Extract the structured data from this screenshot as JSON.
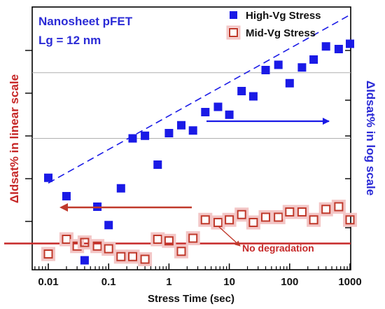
{
  "chart_data": {
    "type": "scatter",
    "title": "Nanosheet pFET",
    "subtitle": "Lg = 12 nm",
    "xlabel": "Stress Time (sec)",
    "ylabel_left": "ΔIdsat% in linear scale",
    "ylabel_right": "ΔIdsat% in log scale",
    "x_scale": "log",
    "xlim": [
      0.005,
      1000
    ],
    "x_ticks": [
      0.01,
      0.1,
      1,
      10,
      100,
      1000
    ],
    "x_tick_labels": [
      "0.01",
      "0.1",
      "1",
      "10",
      "100",
      "1000"
    ],
    "series": [
      {
        "name": "High-Vg Stress",
        "axis": "right",
        "color": "#1a1ae6",
        "marker": "filled-square",
        "x": [
          0.01,
          0.02,
          0.04,
          0.065,
          0.1,
          0.16,
          0.25,
          0.4,
          0.65,
          1.0,
          1.6,
          2.5,
          4,
          6.5,
          10,
          16,
          25,
          40,
          65,
          100,
          160,
          250,
          400,
          650,
          1000
        ],
        "y": [
          27.5,
          24.0,
          11.8,
          22.0,
          18.5,
          25.5,
          35.0,
          35.5,
          30.0,
          36.0,
          37.5,
          36.5,
          40.0,
          41.0,
          39.5,
          44.0,
          43.0,
          48.0,
          49.0,
          45.5,
          48.5,
          50.0,
          52.5,
          52.0,
          53.0
        ]
      },
      {
        "name": "Mid-Vg Stress",
        "axis": "left",
        "color": "#c0392b",
        "marker": "open-square",
        "x": [
          0.01,
          0.02,
          0.03,
          0.04,
          0.065,
          0.1,
          0.16,
          0.25,
          0.4,
          0.65,
          1.0,
          1.6,
          2.5,
          4,
          6.5,
          10,
          16,
          25,
          40,
          65,
          100,
          160,
          250,
          400,
          650,
          1000
        ],
        "y": [
          13.0,
          15.8,
          14.5,
          15.2,
          14.5,
          14.0,
          12.5,
          12.5,
          12.0,
          15.8,
          15.5,
          13.5,
          16.0,
          19.5,
          19.0,
          19.5,
          20.5,
          19.0,
          20.0,
          20.0,
          21.0,
          21.0,
          19.5,
          21.5,
          22.0,
          19.5
        ]
      }
    ],
    "y_range": [
      10,
      60
    ],
    "trend_line": {
      "x": [
        0.01,
        1000
      ],
      "y": [
        26.5,
        58.5
      ],
      "style": "dashed",
      "color": "#1a1ae6"
    },
    "zero_line": {
      "y": 15.0,
      "color": "#c0392b"
    },
    "gridlines_y": [
      47.5,
      35.0
    ],
    "annotations": {
      "no_degradation": "No degradation"
    },
    "legend_position": "top-right",
    "axis_colors": {
      "left": "#c62828",
      "right": "#2b2bd6"
    }
  }
}
